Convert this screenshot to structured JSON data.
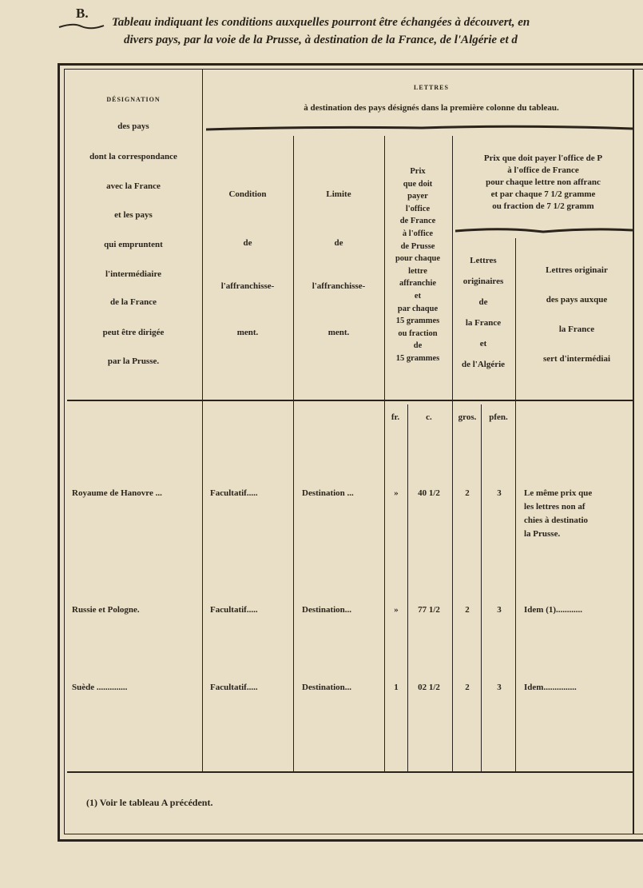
{
  "header": {
    "letter": "B.",
    "title_lines": [
      "Tableau indiquant les conditions auxquelles pourront être échangées à découvert, en",
      "divers pays, par la voie de la Prusse, à destination de la France, de l'Algérie et d"
    ]
  },
  "table": {
    "group_header": [
      "LETTRES",
      "à destination des pays désignés dans la première colonne du tableau."
    ],
    "col1": [
      "DÉSIGNATION",
      "des pays",
      "dont la correspondance",
      "avec la France",
      "et les pays",
      "qui empruntent",
      "l'intermédiaire",
      "de la France",
      "peut être dirigée",
      "par la Prusse."
    ],
    "col2": [
      "Condition",
      "de",
      "l'affranchisse-",
      "ment."
    ],
    "col3": [
      "Limite",
      "de",
      "l'affranchisse-",
      "ment."
    ],
    "col4": [
      "Prix",
      "que doit",
      "payer",
      "l'office",
      "de France",
      "à l'office",
      "de Prusse",
      "pour chaque",
      "lettre",
      "affranchie",
      "et",
      "par chaque",
      "15 grammes",
      "ou fraction",
      "de",
      "15 grammes"
    ],
    "col5_group": [
      "Prix que doit payer l'office de P",
      "à l'office de France",
      "pour chaque lettre non affranc",
      "et par chaque 7 1/2 gramme",
      "ou fraction de 7 1/2 gramm"
    ],
    "col5a": [
      "Lettres",
      "originaires",
      "de",
      "la France",
      "et",
      "de l'Algérie"
    ],
    "col5b": [
      "Lettres originair",
      "des pays auxque",
      "la France",
      "sert d'intermédiai"
    ],
    "units": [
      "fr.",
      "c.",
      "gros.",
      "pfen."
    ],
    "rows": [
      [
        "Royaume de Hanovre ...",
        "Facultatif.....",
        "Destination ...",
        "»",
        "40 1/2",
        "2",
        "3",
        [
          "Le même prix que",
          "les lettres non af",
          "chies à destinatio",
          "la Prusse."
        ]
      ],
      [
        "Russie et Pologne.",
        "Facultatif.....",
        "Destination...",
        "»",
        "77 1/2",
        "2",
        "3",
        [
          "Idem (1)............"
        ]
      ],
      [
        "Suède ..............",
        "Facultatif.....",
        "Destination...",
        "1",
        "02 1/2",
        "2",
        "3",
        [
          "Idem..............."
        ]
      ]
    ]
  },
  "footnote": "(1) Voir le tableau A précédent."
}
